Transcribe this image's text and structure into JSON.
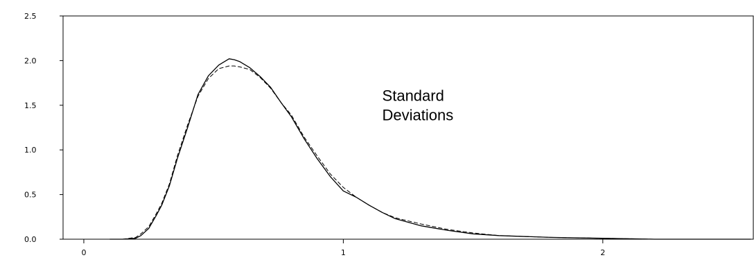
{
  "chart_data": {
    "type": "line",
    "title": "",
    "xlabel": "",
    "ylabel": "",
    "xlim": [
      -0.08,
      2.58
    ],
    "ylim": [
      0,
      2.5
    ],
    "grid": false,
    "legend": "none",
    "x_ticks": [
      {
        "value": 0,
        "label": "0"
      },
      {
        "value": 1,
        "label": "1"
      },
      {
        "value": 2,
        "label": "2"
      }
    ],
    "y_ticks": [
      {
        "value": 0,
        "label": "0.0"
      },
      {
        "value": 0.5,
        "label": "0.5"
      },
      {
        "value": 1,
        "label": "1.0"
      },
      {
        "value": 1.5,
        "label": "1.5"
      },
      {
        "value": 2,
        "label": "2.0"
      },
      {
        "value": 2.5,
        "label": "2.5"
      }
    ],
    "annotation": {
      "lines": [
        "Standard",
        "Deviations"
      ],
      "x": 1.15,
      "y": 1.55
    },
    "series": [
      {
        "style": "solid",
        "x": [
          0.1,
          0.15,
          0.2,
          0.22,
          0.25,
          0.28,
          0.3,
          0.33,
          0.36,
          0.4,
          0.44,
          0.48,
          0.52,
          0.56,
          0.58,
          0.6,
          0.64,
          0.68,
          0.72,
          0.76,
          0.8,
          0.85,
          0.9,
          0.95,
          1.0,
          1.05,
          1.1,
          1.15,
          1.2,
          1.3,
          1.4,
          1.5,
          1.6,
          1.8,
          2.0,
          2.2,
          2.4,
          2.57
        ],
        "y": [
          0.0,
          0.0,
          0.01,
          0.04,
          0.12,
          0.27,
          0.38,
          0.6,
          0.9,
          1.25,
          1.62,
          1.83,
          1.95,
          2.02,
          2.01,
          1.99,
          1.92,
          1.82,
          1.7,
          1.53,
          1.37,
          1.12,
          0.9,
          0.7,
          0.54,
          0.47,
          0.38,
          0.3,
          0.23,
          0.15,
          0.1,
          0.06,
          0.04,
          0.02,
          0.01,
          0.0,
          0.0,
          0.0
        ]
      },
      {
        "style": "dashed",
        "x": [
          0.1,
          0.15,
          0.2,
          0.22,
          0.25,
          0.28,
          0.3,
          0.33,
          0.36,
          0.4,
          0.44,
          0.48,
          0.52,
          0.56,
          0.58,
          0.6,
          0.64,
          0.68,
          0.72,
          0.76,
          0.8,
          0.85,
          0.9,
          0.95,
          1.0,
          1.05,
          1.1,
          1.15,
          1.2,
          1.3,
          1.4,
          1.5,
          1.6,
          1.8,
          2.0,
          2.2,
          2.4,
          2.57
        ],
        "y": [
          0.0,
          0.0,
          0.02,
          0.06,
          0.14,
          0.29,
          0.4,
          0.62,
          0.93,
          1.28,
          1.6,
          1.8,
          1.91,
          1.94,
          1.94,
          1.93,
          1.9,
          1.81,
          1.69,
          1.53,
          1.39,
          1.14,
          0.93,
          0.73,
          0.58,
          0.47,
          0.38,
          0.3,
          0.24,
          0.17,
          0.11,
          0.07,
          0.04,
          0.02,
          0.01,
          0.0,
          0.0,
          0.0
        ]
      }
    ]
  }
}
